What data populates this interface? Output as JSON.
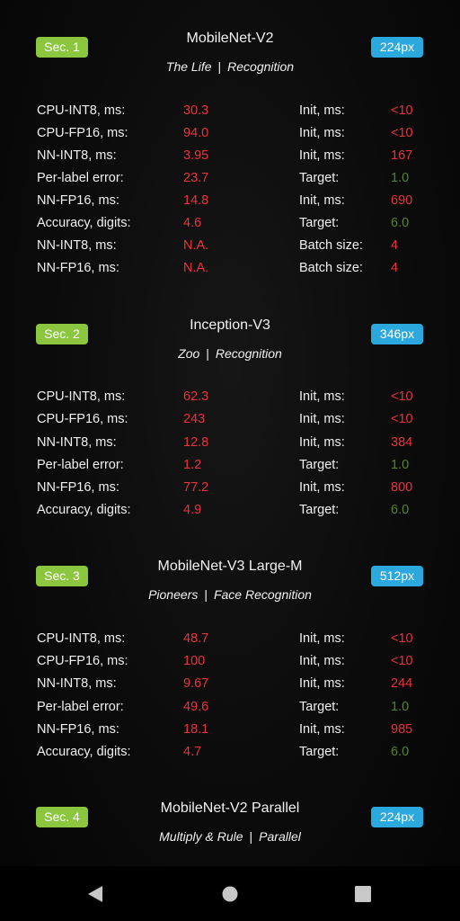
{
  "colors": {
    "section_badge": "#8cc63e",
    "resolution_badge": "#2ba8de",
    "value_red": "#e8333e",
    "value_green": "#55822a",
    "background": "#060606"
  },
  "sections": [
    {
      "badge": "Sec. 1",
      "model": "MobileNet-V2",
      "subtitle_left": "The Life",
      "separator": "|",
      "subtitle_right": "Recognition",
      "resolution": "224px",
      "rows": [
        {
          "l1": "CPU-INT8, ms:",
          "v1": "30.3",
          "l2": "Init, ms:",
          "v2": "<10",
          "c2": "red"
        },
        {
          "l1": "CPU-FP16, ms:",
          "v1": "94.0",
          "l2": "Init, ms:",
          "v2": "<10",
          "c2": "red"
        },
        {
          "l1": "NN-INT8, ms:",
          "v1": "3.95",
          "l2": "Init, ms:",
          "v2": "167",
          "c2": "red"
        },
        {
          "l1": "Per-label error:",
          "v1": "23.7",
          "l2": "Target:",
          "v2": "1.0",
          "c2": "green"
        },
        {
          "l1": "NN-FP16, ms:",
          "v1": "14.8",
          "l2": "Init, ms:",
          "v2": "690",
          "c2": "red"
        },
        {
          "l1": "Accuracy, digits:",
          "v1": "4.6",
          "l2": "Target:",
          "v2": "6.0",
          "c2": "green"
        },
        {
          "l1": "NN-INT8, ms:",
          "v1": "N.A.",
          "l2": "Batch size:",
          "v2": "4",
          "c2": "red"
        },
        {
          "l1": "NN-FP16, ms:",
          "v1": "N.A.",
          "l2": "Batch size:",
          "v2": "4",
          "c2": "red"
        }
      ]
    },
    {
      "badge": "Sec. 2",
      "model": "Inception-V3",
      "subtitle_left": "Zoo",
      "separator": "|",
      "subtitle_right": "Recognition",
      "resolution": "346px",
      "rows": [
        {
          "l1": "CPU-INT8, ms:",
          "v1": "62.3",
          "l2": "Init, ms:",
          "v2": "<10",
          "c2": "red"
        },
        {
          "l1": "CPU-FP16, ms:",
          "v1": "243",
          "l2": "Init, ms:",
          "v2": "<10",
          "c2": "red"
        },
        {
          "l1": "NN-INT8, ms:",
          "v1": "12.8",
          "l2": "Init, ms:",
          "v2": "384",
          "c2": "red"
        },
        {
          "l1": "Per-label error:",
          "v1": "1.2",
          "l2": "Target:",
          "v2": "1.0",
          "c2": "green"
        },
        {
          "l1": "NN-FP16, ms:",
          "v1": "77.2",
          "l2": "Init, ms:",
          "v2": "800",
          "c2": "red"
        },
        {
          "l1": "Accuracy, digits:",
          "v1": "4.9",
          "l2": "Target:",
          "v2": "6.0",
          "c2": "green"
        }
      ]
    },
    {
      "badge": "Sec. 3",
      "model": "MobileNet-V3 Large-M",
      "subtitle_left": "Pioneers",
      "separator": "|",
      "subtitle_right": "Face Recognition",
      "resolution": "512px",
      "rows": [
        {
          "l1": "CPU-INT8, ms:",
          "v1": "48.7",
          "l2": "Init, ms:",
          "v2": "<10",
          "c2": "red"
        },
        {
          "l1": "CPU-FP16, ms:",
          "v1": "100",
          "l2": "Init, ms:",
          "v2": "<10",
          "c2": "red"
        },
        {
          "l1": "NN-INT8, ms:",
          "v1": "9.67",
          "l2": "Init, ms:",
          "v2": "244",
          "c2": "red"
        },
        {
          "l1": "Per-label error:",
          "v1": "49.6",
          "l2": "Target:",
          "v2": "1.0",
          "c2": "green"
        },
        {
          "l1": "NN-FP16, ms:",
          "v1": "18.1",
          "l2": "Init, ms:",
          "v2": "985",
          "c2": "red"
        },
        {
          "l1": "Accuracy, digits:",
          "v1": "4.7",
          "l2": "Target:",
          "v2": "6.0",
          "c2": "green"
        }
      ]
    },
    {
      "badge": "Sec. 4",
      "model": "MobileNet-V2 Parallel",
      "subtitle_left": "Multiply & Rule",
      "separator": "|",
      "subtitle_right": "Parallel",
      "resolution": "224px",
      "rows": []
    }
  ],
  "navbar": {
    "back_icon": "back-triangle-icon",
    "home_icon": "home-circle-icon",
    "recents_icon": "recents-square-icon"
  }
}
